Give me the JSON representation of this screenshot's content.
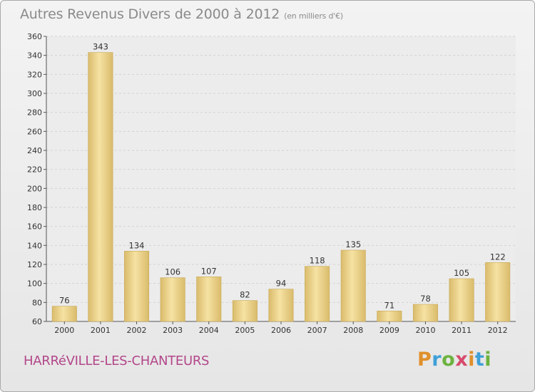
{
  "chart_data": {
    "type": "bar",
    "title": "Autres Revenus Divers de 2000 à 2012",
    "unit_note": "(en milliers d'€)",
    "categories": [
      "2000",
      "2001",
      "2002",
      "2003",
      "2004",
      "2005",
      "2006",
      "2007",
      "2008",
      "2009",
      "2010",
      "2011",
      "2012"
    ],
    "values": [
      76,
      343,
      134,
      106,
      107,
      82,
      94,
      118,
      135,
      71,
      78,
      105,
      122
    ],
    "ylim": [
      60,
      360
    ],
    "yticks": [
      60,
      80,
      100,
      120,
      140,
      160,
      180,
      200,
      220,
      240,
      260,
      280,
      300,
      320,
      340,
      360
    ],
    "grid": true,
    "xlabel": "",
    "ylabel": ""
  },
  "commune": "HARRéVILLE-LES-CHANTEURS",
  "logo": {
    "letters": [
      "P",
      "r",
      "o",
      "x",
      "i",
      "t",
      "i"
    ],
    "colors": [
      "#e0902b",
      "#3fa0d8",
      "#6cb33f",
      "#d64a6b",
      "#e0902b",
      "#3fa0d8",
      "#6cb33f"
    ]
  },
  "colors": {
    "bar_light": "#f6e2a3",
    "bar_dark": "#d9bb6b",
    "grid": "#d2d2d2",
    "title": "#8a8a8a",
    "commune": "#b3478a"
  }
}
